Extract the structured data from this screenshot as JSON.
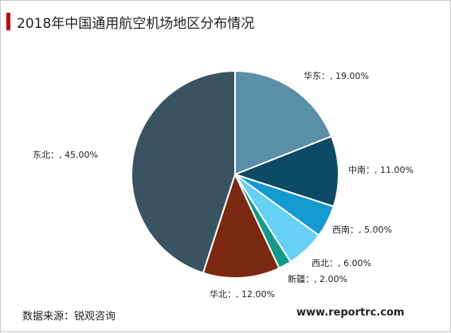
{
  "title": "2018年中国通用航空机场地区分布情况",
  "source": "数据来源：锐观咨询",
  "website": "www.reportrc.com",
  "chart_data": {
    "type": "pie",
    "title": "2018年中国通用航空机场地区分布情况",
    "slices": [
      {
        "name": "华东",
        "value": 19.0,
        "label": "华东：, 19.00%",
        "color": "#5b8fa8"
      },
      {
        "name": "中南",
        "value": 11.0,
        "label": "中南：, 11.00%",
        "color": "#0d4a66"
      },
      {
        "name": "西南",
        "value": 5.0,
        "label": "西南：, 5.00%",
        "color": "#1499d0"
      },
      {
        "name": "西北",
        "value": 6.0,
        "label": "西北：, 6.00%",
        "color": "#66d0f5"
      },
      {
        "name": "新疆",
        "value": 2.0,
        "label": "新疆：, 2.00%",
        "color": "#139b87"
      },
      {
        "name": "华北",
        "value": 12.0,
        "label": "华北：, 12.00%",
        "color": "#7a2812"
      },
      {
        "name": "东北",
        "value": 45.0,
        "label": "东北：, 45.00%",
        "color": "#3a5361"
      }
    ]
  }
}
